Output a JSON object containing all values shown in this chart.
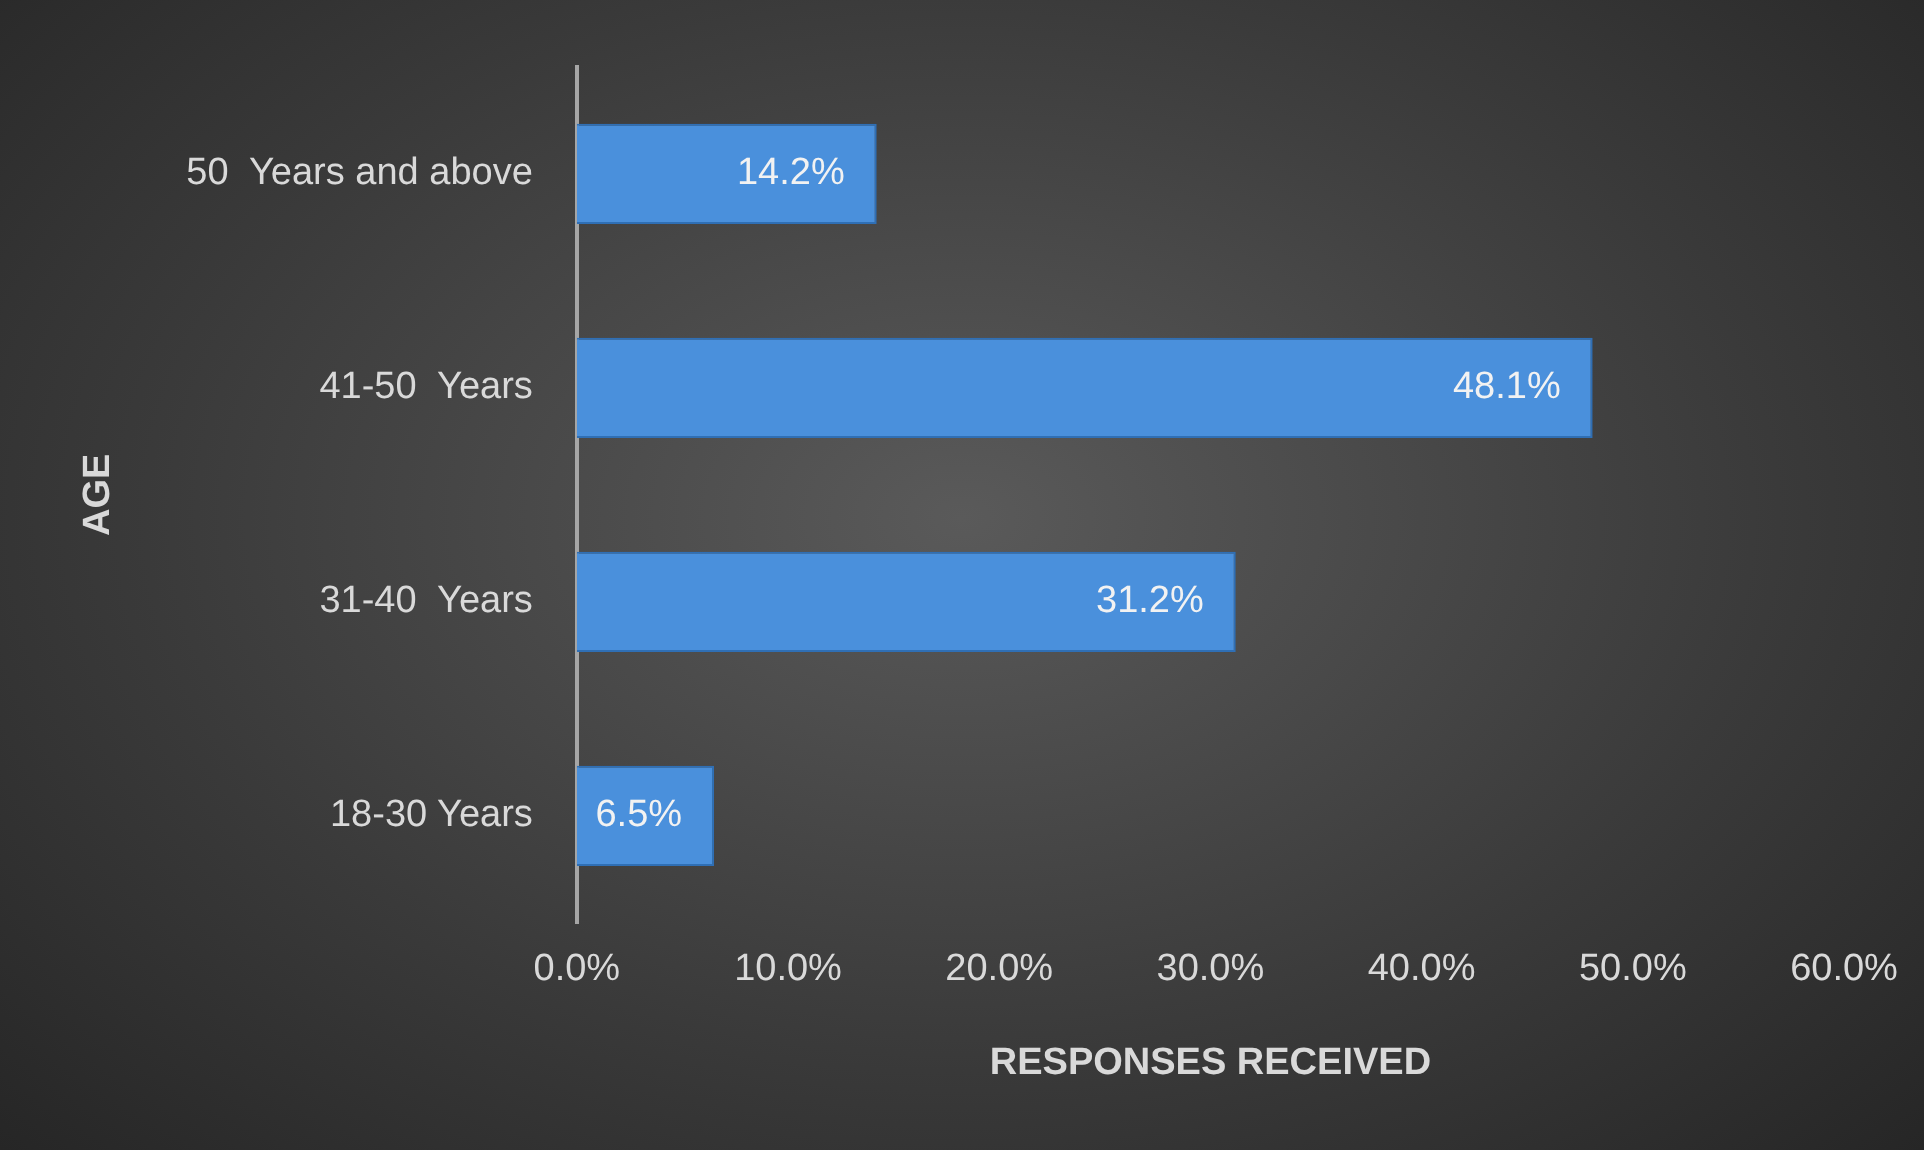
{
  "chart_data": {
    "type": "bar",
    "orientation": "horizontal",
    "xlabel": "RESPONSES RECEIVED",
    "ylabel": "AGE",
    "categories": [
      "50  Years and above",
      "41-50  Years",
      "31-40  Years",
      "18-30 Years"
    ],
    "values": [
      14.2,
      48.1,
      31.2,
      6.5
    ],
    "color": "#4a90dc",
    "value_labels": [
      "14.2%",
      "48.1%",
      "31.2%",
      "6.5%"
    ],
    "xlim": [
      0,
      60
    ],
    "xticks": [
      {
        "value": 0,
        "label": "0.0%"
      },
      {
        "value": 10,
        "label": "10.0%"
      },
      {
        "value": 20,
        "label": "20.0%"
      },
      {
        "value": 30,
        "label": "30.0%"
      },
      {
        "value": 40,
        "label": "40.0%"
      },
      {
        "value": 50,
        "label": "50.0%"
      },
      {
        "value": 60,
        "label": "60.0%"
      }
    ],
    "grid": false,
    "legend": false
  }
}
